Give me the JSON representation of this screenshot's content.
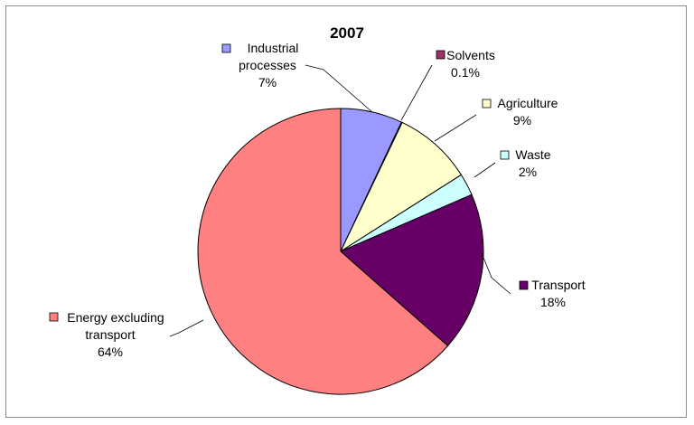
{
  "chart_data": {
    "type": "pie",
    "title": "2007",
    "slices": [
      {
        "name_lines": [
          "Industrial",
          "processes"
        ],
        "label": "7%",
        "value": 7.0,
        "color": "#9999ff"
      },
      {
        "name_lines": [
          "Solvents"
        ],
        "label": "0.1%",
        "value": 0.1,
        "color": "#993366"
      },
      {
        "name_lines": [
          "Agriculture"
        ],
        "label": "9%",
        "value": 8.9,
        "color": "#ffffcc"
      },
      {
        "name_lines": [
          "Waste"
        ],
        "label": "2%",
        "value": 2.5,
        "color": "#ccffff"
      },
      {
        "name_lines": [
          "Transport"
        ],
        "label": "18%",
        "value": 18.0,
        "color": "#660066"
      },
      {
        "name_lines": [
          "Energy excluding",
          "transport"
        ],
        "label": "64%",
        "value": 63.5,
        "color": "#ff8080"
      }
    ],
    "start_angle_deg": 0,
    "direction": "clockwise",
    "legend": "none",
    "label_style": "outside-with-leader-lines"
  }
}
